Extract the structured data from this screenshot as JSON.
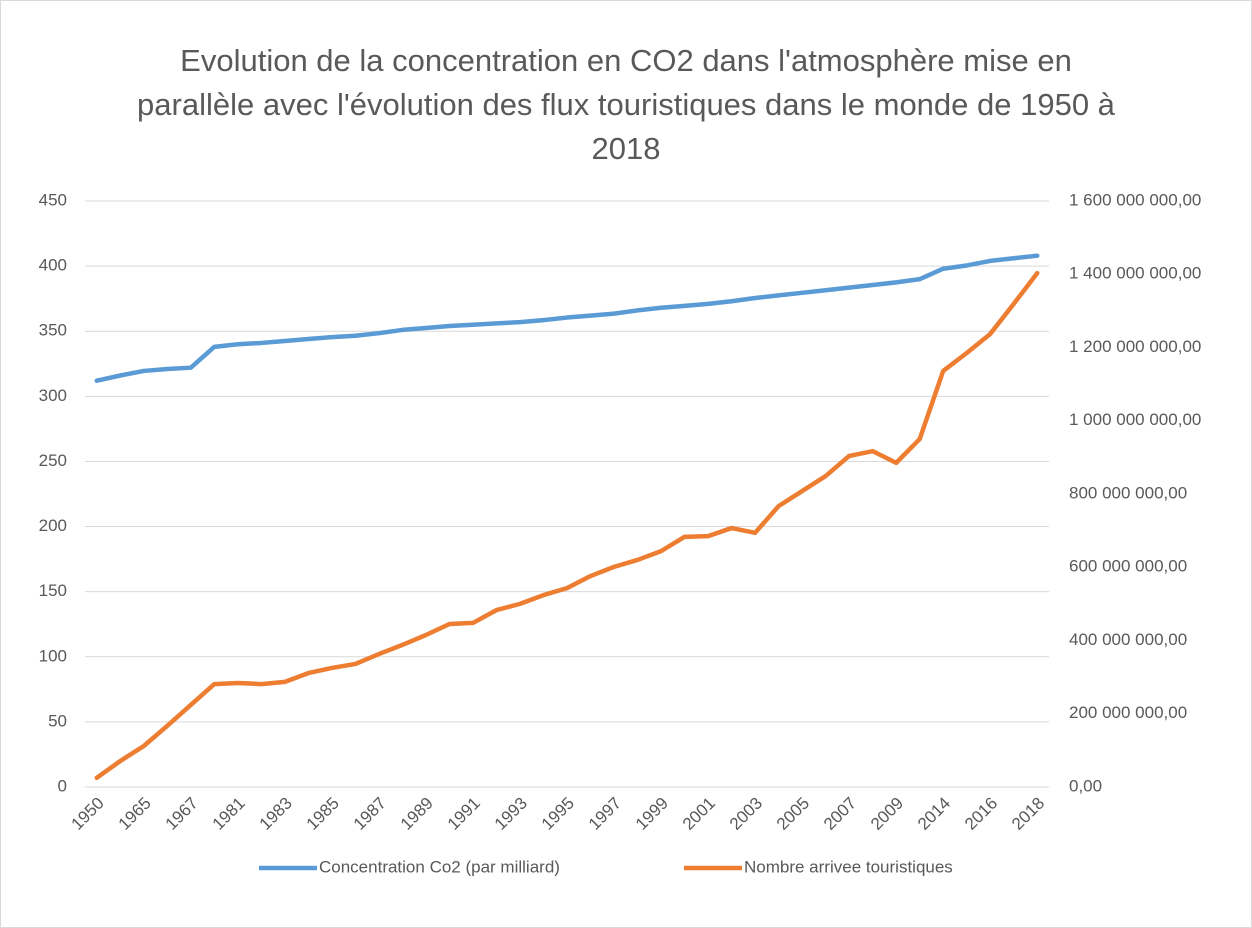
{
  "chart_data": {
    "type": "line",
    "title": "Evolution de la concentration en CO2 dans l'atmosphère mise en parallèle avec l'évolution des flux touristiques dans le monde de 1950 à 2018",
    "categories": [
      "1950",
      null,
      "1965",
      null,
      "1967",
      null,
      "1981",
      null,
      "1983",
      null,
      "1985",
      null,
      "1987",
      null,
      "1989",
      null,
      "1991",
      null,
      "1993",
      null,
      "1995",
      null,
      "1997",
      null,
      "1999",
      null,
      "2001",
      null,
      "2003",
      null,
      "2005",
      null,
      "2007",
      null,
      "2009",
      null,
      "2014",
      null,
      "2016",
      null,
      "2018"
    ],
    "series": [
      {
        "name": "Concentration Co2 (par milliard)",
        "color": "#5b9bd5",
        "values": [
          312,
          316,
          319.5,
          321,
          322,
          338,
          340,
          341,
          342.5,
          344,
          345.5,
          346.5,
          348.5,
          351,
          352.5,
          354,
          355,
          356,
          357,
          358.5,
          360.5,
          362,
          363.5,
          366,
          368,
          369.5,
          371,
          373,
          375.5,
          377.5,
          379.5,
          381.5,
          383.5,
          385.5,
          387.5,
          390,
          398,
          400.5,
          404,
          406,
          408
        ]
      },
      {
        "name": "Nombre arrivee touristiques",
        "color": "#ed7d31",
        "axis": "y2",
        "values": [
          25000000,
          71000000,
          112000000,
          167000000,
          224000000,
          281000000,
          284000000,
          281000000,
          287000000,
          311000000,
          325000000,
          336000000,
          363000000,
          388000000,
          415000000,
          445000000,
          448000000,
          483000000,
          500000000,
          524000000,
          543000000,
          576000000,
          601000000,
          620000000,
          644000000,
          683000000,
          685000000,
          707000000,
          694000000,
          767000000,
          808000000,
          849000000,
          904000000,
          917000000,
          885000000,
          950000000,
          1136000000,
          1185000000,
          1237000000,
          1319000000,
          1403000000
        ]
      }
    ],
    "ylim": [
      0,
      450
    ],
    "yticks": [
      0,
      50,
      100,
      150,
      200,
      250,
      300,
      350,
      400,
      450
    ],
    "y2lim": [
      0,
      1600000000
    ],
    "y2ticks": [
      {
        "value": 0,
        "label": "0,00"
      },
      {
        "value": 200000000,
        "label": "200 000 000,00"
      },
      {
        "value": 400000000,
        "label": "400 000 000,00"
      },
      {
        "value": 600000000,
        "label": "600 000 000,00"
      },
      {
        "value": 800000000,
        "label": "800 000 000,00"
      },
      {
        "value": 1000000000,
        "label": "1 000 000 000,00"
      },
      {
        "value": 1200000000,
        "label": "1 200 000 000,00"
      },
      {
        "value": 1400000000,
        "label": "1 400 000 000,00"
      },
      {
        "value": 1600000000,
        "label": "1 600 000 000,00"
      }
    ],
    "grid": true,
    "legend": "bottom"
  }
}
